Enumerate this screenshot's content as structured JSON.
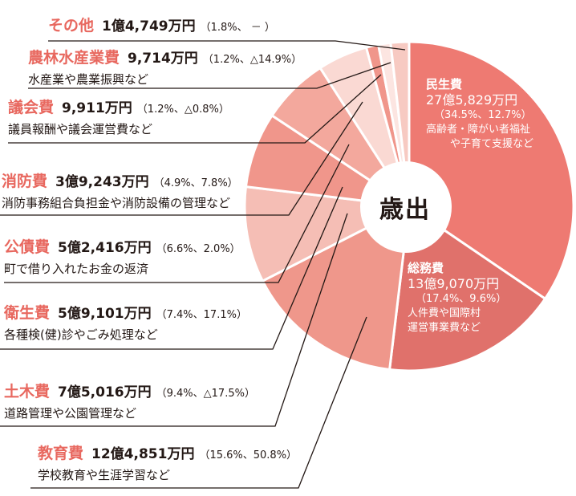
{
  "chart_data": {
    "type": "pie",
    "donut": true,
    "title": "歳出",
    "start": "top",
    "direction": "clockwise",
    "slices": [
      {
        "name": "民生費",
        "amount": "27億5,829万円",
        "share": 34.5,
        "change": "12.7%",
        "description": "高齢者・障がい者福祉や子育て支援など",
        "color": "#ee7a72"
      },
      {
        "name": "総務費",
        "amount": "13億9,070万円",
        "share": 17.4,
        "change": "9.6%",
        "description": "人件費や国際村運営事業費など",
        "color": "#e0716b"
      },
      {
        "name": "教育費",
        "amount": "12億4,851万円",
        "share": 15.6,
        "change": "50.8%",
        "description": "学校教育や生涯学習など",
        "color": "#ef978b"
      },
      {
        "name": "土木費",
        "amount": "7億5,016万円",
        "share": 9.4,
        "change": "△17.5%",
        "description": "道路管理や公園管理など",
        "color": "#f5beb5"
      },
      {
        "name": "衛生費",
        "amount": "5億9,101万円",
        "share": 7.4,
        "change": "17.1%",
        "description": "各種検(健)診やごみ処理など",
        "color": "#f0968b"
      },
      {
        "name": "公債費",
        "amount": "5億2,416万円",
        "share": 6.6,
        "change": "2.0%",
        "description": "町で借り入れたお金の返済",
        "color": "#f3a89d"
      },
      {
        "name": "消防費",
        "amount": "3億9,243万円",
        "share": 4.9,
        "change": "7.8%",
        "description": "消防事務組合負担金や消防設備の管理など",
        "color": "#fad9d3"
      },
      {
        "name": "議会費",
        "amount": "9,911万円",
        "share": 1.2,
        "change": "△0.8%",
        "description": "議員報酬や議会運営費など",
        "color": "#f0968b"
      },
      {
        "name": "農林水産業費",
        "amount": "9,714万円",
        "share": 1.2,
        "change": "△14.9%",
        "description": "水産業や農業振興など",
        "color": "#fce5e1"
      },
      {
        "name": "その他",
        "amount": "1億4,749万円",
        "share": 1.8,
        "change": "－",
        "description": "",
        "color": "#f7cac2"
      }
    ]
  },
  "inside": {
    "minsei": {
      "pct": "（34.5%、12.7%）",
      "desc1": "高齢者・障がい者福祉",
      "desc2": "や子育て支援など"
    },
    "somu": {
      "pct": "（17.4%、9.6%）",
      "desc1": "人件費や国際村",
      "desc2": "運営事業費など"
    }
  },
  "outside": {
    "sonota": {
      "pct": "（1.8%、 － ）"
    },
    "norin": {
      "pct": "（1.2%、△14.9%）"
    },
    "gikai": {
      "pct": "（1.2%、△0.8%）"
    },
    "shobo": {
      "pct": "（4.9%、7.8%）"
    },
    "kosai": {
      "pct": "（6.6%、2.0%）"
    },
    "eisei": {
      "pct": "（7.4%、17.1%）"
    },
    "doboku": {
      "pct": "（9.4%、△17.5%）"
    },
    "kyoiku": {
      "pct": "（15.6%、50.8%）"
    }
  }
}
